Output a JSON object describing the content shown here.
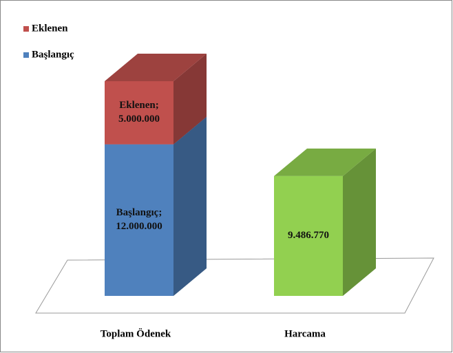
{
  "chart_data": {
    "type": "bar3d_stacked",
    "categories": [
      "Toplam Ödenek",
      "Harcama"
    ],
    "series": [
      {
        "name": "Başlangıç",
        "color": "#4f81bd",
        "colors": [
          "#4f81bd",
          "#92d050"
        ],
        "values": [
          12000000,
          9486770
        ],
        "value_labels": [
          "Başlangıç; 12.000.000",
          "9.486.770"
        ]
      },
      {
        "name": "Eklenen",
        "color": "#c0504d",
        "colors": [
          "#c0504d",
          null
        ],
        "values": [
          5000000,
          null
        ],
        "value_labels": [
          "Eklenen; 5.000.000",
          null
        ]
      }
    ]
  }
}
